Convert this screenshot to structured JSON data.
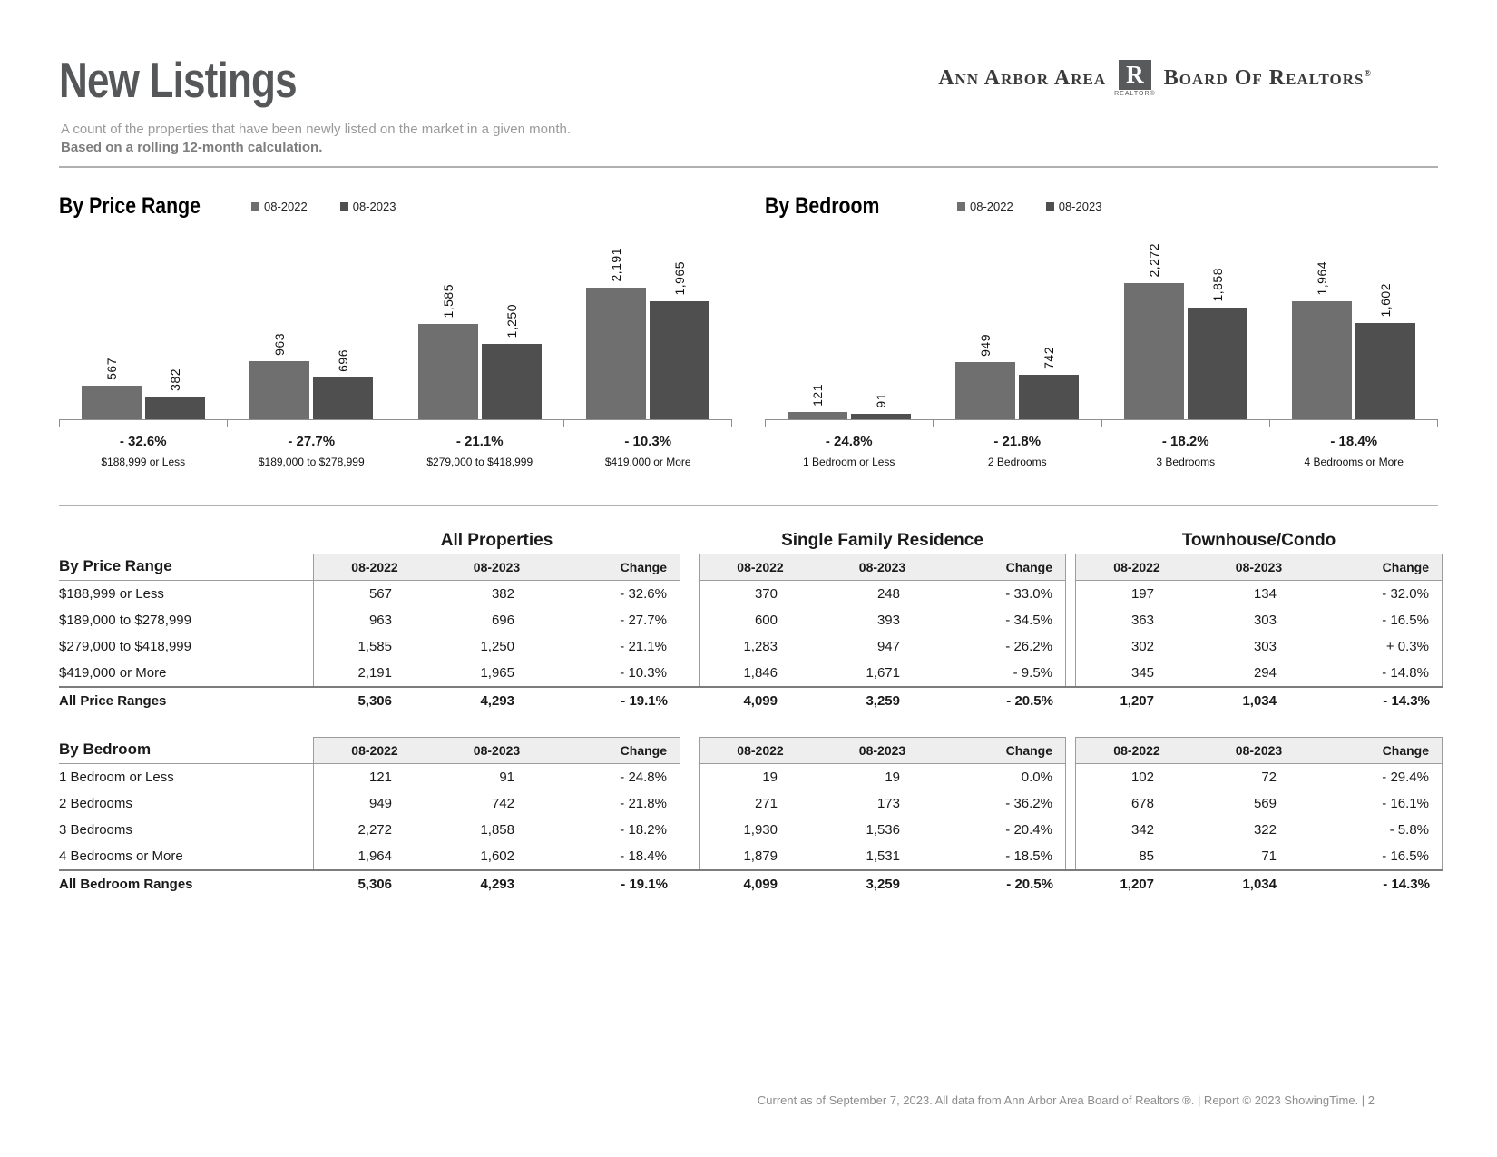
{
  "page": {
    "title": "New Listings",
    "subtitle": "A count of the properties that have been newly listed on the market in a given month.",
    "subtitle_bold": "Based on a rolling 12-month calculation.",
    "footer": "Current as of September 7, 2023. All data from Ann Arbor Area Board of Realtors ®.  |  Report © 2023 ShowingTime.  |  2"
  },
  "logo": {
    "left": "Ann Arbor Area",
    "right": "Board Of Realtors",
    "reg": "®",
    "r_letter": "R",
    "r_caption": "REALTOR®"
  },
  "colors": {
    "bar_2022": "#6f6f6f",
    "bar_2023": "#4f4f4f",
    "title_gray": "#565759",
    "table_border": "#9c9c9c",
    "header_bg": "#eeeeee"
  },
  "chart_data": [
    {
      "type": "bar",
      "title": "By Price Range",
      "legend_position": "top",
      "grid": false,
      "ymax": 2272,
      "categories": [
        "$188,999 or Less",
        "$189,000 to $278,999",
        "$279,000 to $418,999",
        "$419,000 or More"
      ],
      "series": [
        {
          "name": "08-2022",
          "values": [
            567,
            963,
            1585,
            2191
          ]
        },
        {
          "name": "08-2023",
          "values": [
            382,
            696,
            1250,
            1965
          ]
        }
      ],
      "change": [
        "- 32.6%",
        "- 27.7%",
        "- 21.1%",
        "- 10.3%"
      ]
    },
    {
      "type": "bar",
      "title": "By Bedroom",
      "legend_position": "top",
      "grid": false,
      "ymax": 2272,
      "categories": [
        "1 Bedroom or Less",
        "2 Bedrooms",
        "3 Bedrooms",
        "4 Bedrooms or More"
      ],
      "series": [
        {
          "name": "08-2022",
          "values": [
            121,
            949,
            2272,
            1964
          ]
        },
        {
          "name": "08-2023",
          "values": [
            91,
            742,
            1858,
            1602
          ]
        }
      ],
      "change": [
        "- 24.8%",
        "- 21.8%",
        "- 18.2%",
        "- 18.4%"
      ]
    }
  ],
  "tables": {
    "group_titles": [
      "All Properties",
      "Single Family Residence",
      "Townhouse/Condo"
    ],
    "col_headers": [
      "08-2022",
      "08-2023",
      "Change"
    ],
    "sections": [
      {
        "row_header": "By Price Range",
        "rows": [
          {
            "label": "$188,999 or Less",
            "cells": [
              "567",
              "382",
              "- 32.6%",
              "370",
              "248",
              "- 33.0%",
              "197",
              "134",
              "- 32.0%"
            ]
          },
          {
            "label": "$189,000 to $278,999",
            "cells": [
              "963",
              "696",
              "- 27.7%",
              "600",
              "393",
              "- 34.5%",
              "363",
              "303",
              "- 16.5%"
            ]
          },
          {
            "label": "$279,000 to $418,999",
            "cells": [
              "1,585",
              "1,250",
              "- 21.1%",
              "1,283",
              "947",
              "- 26.2%",
              "302",
              "303",
              "+ 0.3%"
            ]
          },
          {
            "label": "$419,000 or More",
            "cells": [
              "2,191",
              "1,965",
              "- 10.3%",
              "1,846",
              "1,671",
              "- 9.5%",
              "345",
              "294",
              "- 14.8%"
            ]
          }
        ],
        "total": {
          "label": "All Price Ranges",
          "cells": [
            "5,306",
            "4,293",
            "- 19.1%",
            "4,099",
            "3,259",
            "- 20.5%",
            "1,207",
            "1,034",
            "- 14.3%"
          ]
        }
      },
      {
        "row_header": "By Bedroom",
        "rows": [
          {
            "label": "1 Bedroom or Less",
            "cells": [
              "121",
              "91",
              "- 24.8%",
              "19",
              "19",
              "0.0%",
              "102",
              "72",
              "- 29.4%"
            ]
          },
          {
            "label": "2 Bedrooms",
            "cells": [
              "949",
              "742",
              "- 21.8%",
              "271",
              "173",
              "- 36.2%",
              "678",
              "569",
              "- 16.1%"
            ]
          },
          {
            "label": "3 Bedrooms",
            "cells": [
              "2,272",
              "1,858",
              "- 18.2%",
              "1,930",
              "1,536",
              "- 20.4%",
              "342",
              "322",
              "- 5.8%"
            ]
          },
          {
            "label": "4 Bedrooms or More",
            "cells": [
              "1,964",
              "1,602",
              "- 18.4%",
              "1,879",
              "1,531",
              "- 18.5%",
              "85",
              "71",
              "- 16.5%"
            ]
          }
        ],
        "total": {
          "label": "All Bedroom Ranges",
          "cells": [
            "5,306",
            "4,293",
            "- 19.1%",
            "4,099",
            "3,259",
            "- 20.5%",
            "1,207",
            "1,034",
            "- 14.3%"
          ]
        }
      }
    ]
  }
}
